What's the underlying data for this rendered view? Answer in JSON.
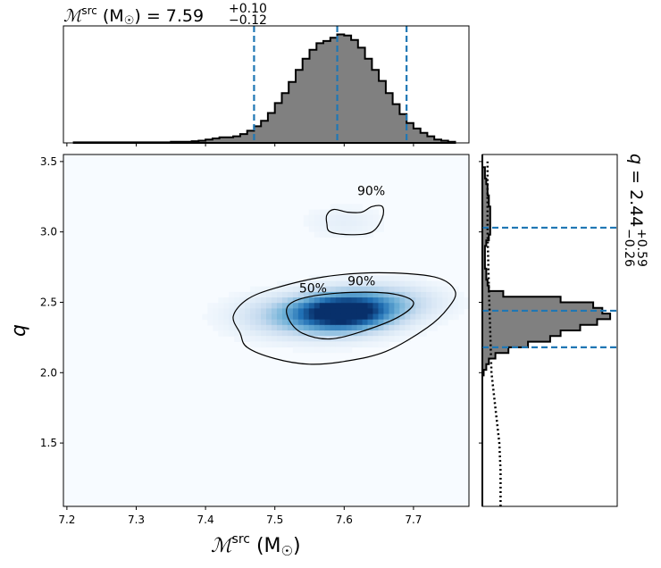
{
  "chart_data": {
    "type": "corner",
    "colors": {
      "hist_fill": "#808080",
      "hist_edge": "#000000",
      "quantile_line": "#1f77b4",
      "density_cmap": [
        "#f7fbff",
        "#c6dbef",
        "#6baed6",
        "#2171b5",
        "#08306b"
      ],
      "contour": "#000000"
    },
    "top_title": {
      "prefix": "ℳ",
      "sup_src": "src",
      "units": " (M",
      "sun": "☉",
      "close": ") = ",
      "value": "7.59",
      "plus": "+0.10",
      "minus": "−0.12"
    },
    "right_title": {
      "prefix": "q = ",
      "value": "2.44",
      "plus": "+0.59",
      "minus": "−0.26"
    },
    "xlabel": {
      "prefix": "ℳ",
      "sup_src": "src",
      "units": " (M",
      "sun": "☉",
      "close": ")"
    },
    "ylabel": "q",
    "xlim": [
      7.195,
      7.78
    ],
    "ylim": [
      1.05,
      3.55
    ],
    "x_ticks": [
      {
        "v": 7.2,
        "label": "7.2"
      },
      {
        "v": 7.3,
        "label": "7.3"
      },
      {
        "v": 7.4,
        "label": "7.4"
      },
      {
        "v": 7.5,
        "label": "7.5"
      },
      {
        "v": 7.6,
        "label": "7.6"
      },
      {
        "v": 7.7,
        "label": "7.7"
      }
    ],
    "y_ticks": [
      {
        "v": 1.5,
        "label": "1.5"
      },
      {
        "v": 2.0,
        "label": "2.0"
      },
      {
        "v": 2.5,
        "label": "2.5"
      },
      {
        "v": 3.0,
        "label": "3.0"
      },
      {
        "v": 3.5,
        "label": "3.5"
      }
    ],
    "mchirp_quantiles": [
      7.47,
      7.59,
      7.69
    ],
    "q_quantiles": [
      2.18,
      2.44,
      3.03
    ],
    "mchirp_hist": {
      "edges": [
        7.21,
        7.22,
        7.23,
        7.24,
        7.25,
        7.26,
        7.27,
        7.28,
        7.29,
        7.3,
        7.31,
        7.32,
        7.33,
        7.34,
        7.35,
        7.36,
        7.37,
        7.38,
        7.39,
        7.4,
        7.41,
        7.42,
        7.43,
        7.44,
        7.45,
        7.46,
        7.47,
        7.48,
        7.49,
        7.5,
        7.51,
        7.52,
        7.53,
        7.54,
        7.55,
        7.56,
        7.57,
        7.58,
        7.59,
        7.6,
        7.61,
        7.62,
        7.63,
        7.64,
        7.65,
        7.66,
        7.67,
        7.68,
        7.69,
        7.7,
        7.71,
        7.72,
        7.73,
        7.74,
        7.75,
        7.76
      ],
      "counts": [
        0.005,
        0.005,
        0.005,
        0.005,
        0.005,
        0.005,
        0.005,
        0.005,
        0.005,
        0.005,
        0.005,
        0.005,
        0.005,
        0.005,
        0.01,
        0.01,
        0.01,
        0.015,
        0.02,
        0.03,
        0.04,
        0.05,
        0.05,
        0.06,
        0.08,
        0.11,
        0.15,
        0.2,
        0.27,
        0.36,
        0.45,
        0.55,
        0.66,
        0.76,
        0.84,
        0.9,
        0.92,
        0.95,
        0.98,
        0.97,
        0.93,
        0.86,
        0.76,
        0.66,
        0.56,
        0.45,
        0.35,
        0.26,
        0.18,
        0.13,
        0.09,
        0.06,
        0.03,
        0.02,
        0.01
      ]
    },
    "q_hist": {
      "edges": [
        1.05,
        1.98,
        2.02,
        2.06,
        2.1,
        2.14,
        2.18,
        2.22,
        2.26,
        2.3,
        2.34,
        2.38,
        2.42,
        2.46,
        2.5,
        2.54,
        2.58,
        2.62,
        2.66,
        2.7,
        2.74,
        2.78,
        2.82,
        2.86,
        2.9,
        2.94,
        2.98,
        3.02,
        3.06,
        3.1,
        3.14,
        3.18,
        3.22,
        3.26,
        3.3,
        3.34,
        3.38,
        3.42,
        3.46,
        3.5,
        3.55
      ],
      "counts": [
        0.0,
        0.01,
        0.03,
        0.05,
        0.1,
        0.2,
        0.35,
        0.52,
        0.6,
        0.75,
        0.88,
        0.98,
        0.92,
        0.85,
        0.6,
        0.16,
        0.05,
        0.04,
        0.03,
        0.03,
        0.02,
        0.02,
        0.02,
        0.02,
        0.03,
        0.05,
        0.06,
        0.06,
        0.06,
        0.06,
        0.06,
        0.05,
        0.05,
        0.04,
        0.04,
        0.03,
        0.02,
        0.02,
        0.0,
        0.0
      ]
    },
    "prior_q": [
      [
        1.05,
        0.14
      ],
      [
        1.3,
        0.14
      ],
      [
        1.5,
        0.13
      ],
      [
        1.75,
        0.1
      ],
      [
        2.0,
        0.07
      ],
      [
        2.3,
        0.06
      ],
      [
        2.6,
        0.05
      ],
      [
        3.0,
        0.04
      ],
      [
        3.5,
        0.04
      ]
    ],
    "density_blobs": [
      {
        "x": 7.6,
        "y": 2.43,
        "sx": 0.04,
        "sy": 0.075,
        "w": 1.0
      },
      {
        "x": 7.56,
        "y": 2.4,
        "sx": 0.06,
        "sy": 0.09,
        "w": 0.45
      },
      {
        "x": 7.65,
        "y": 2.5,
        "sx": 0.05,
        "sy": 0.08,
        "w": 0.3
      },
      {
        "x": 7.6,
        "y": 3.07,
        "sx": 0.035,
        "sy": 0.07,
        "w": 0.05
      }
    ],
    "contours": [
      {
        "level": "90%",
        "label_at": [
          7.625,
          2.62
        ],
        "points": [
          [
            7.45,
            2.28
          ],
          [
            7.46,
            2.18
          ],
          [
            7.5,
            2.1
          ],
          [
            7.55,
            2.06
          ],
          [
            7.6,
            2.08
          ],
          [
            7.66,
            2.15
          ],
          [
            7.72,
            2.32
          ],
          [
            7.75,
            2.46
          ],
          [
            7.76,
            2.58
          ],
          [
            7.73,
            2.68
          ],
          [
            7.65,
            2.71
          ],
          [
            7.57,
            2.68
          ],
          [
            7.5,
            2.6
          ],
          [
            7.46,
            2.52
          ],
          [
            7.44,
            2.4
          ]
        ]
      },
      {
        "level": "50%",
        "label_at": [
          7.555,
          2.57
        ],
        "points": [
          [
            7.52,
            2.38
          ],
          [
            7.54,
            2.28
          ],
          [
            7.58,
            2.24
          ],
          [
            7.63,
            2.3
          ],
          [
            7.68,
            2.4
          ],
          [
            7.7,
            2.5
          ],
          [
            7.67,
            2.56
          ],
          [
            7.61,
            2.57
          ],
          [
            7.55,
            2.54
          ],
          [
            7.52,
            2.48
          ]
        ]
      },
      {
        "level": "90%",
        "label_at": [
          7.639,
          3.26
        ],
        "points": [
          [
            7.575,
            3.06
          ],
          [
            7.58,
            3.0
          ],
          [
            7.61,
            2.98
          ],
          [
            7.64,
            3.0
          ],
          [
            7.655,
            3.1
          ],
          [
            7.655,
            3.18
          ],
          [
            7.64,
            3.18
          ],
          [
            7.625,
            3.14
          ],
          [
            7.605,
            3.14
          ],
          [
            7.585,
            3.16
          ],
          [
            7.575,
            3.12
          ]
        ]
      }
    ]
  }
}
